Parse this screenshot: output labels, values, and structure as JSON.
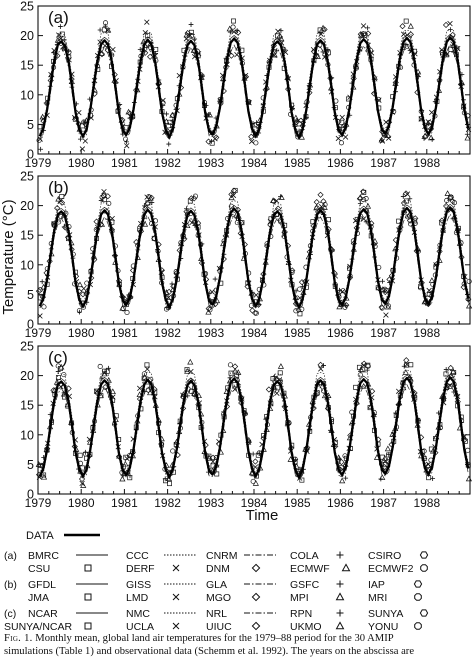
{
  "chart_data": {
    "type": "line",
    "ylabel": "Temperature (°C)",
    "xlabel": "Time",
    "ylim": [
      0,
      25
    ],
    "yticks": [
      0,
      5,
      10,
      15,
      20,
      25
    ],
    "xlim": [
      1979,
      1989
    ],
    "xticks": [
      "1979",
      "1980",
      "1981",
      "1982",
      "1983",
      "1984",
      "1985",
      "1986",
      "1987",
      "1988"
    ],
    "panels": [
      {
        "label": "(a)",
        "data_series": {
          "name": "DATA",
          "x": [
            1979.04,
            1979.12,
            1979.21,
            1979.29,
            1979.37,
            1979.46,
            1979.54,
            1979.62,
            1979.71,
            1979.79,
            1979.87,
            1979.96,
            1980.04,
            1980.12,
            1980.21,
            1980.29,
            1980.37,
            1980.46,
            1980.54,
            1980.62,
            1980.71,
            1980.79,
            1980.87,
            1980.96,
            1981.04,
            1981.12,
            1981.21,
            1981.29,
            1981.37,
            1981.46,
            1981.54,
            1981.62,
            1981.71,
            1981.79,
            1981.87,
            1981.96,
            1982.04,
            1982.12,
            1982.21,
            1982.29,
            1982.37,
            1982.46,
            1982.54,
            1982.62,
            1982.71,
            1982.79,
            1982.87,
            1982.96,
            1983.04,
            1983.12,
            1983.21,
            1983.29,
            1983.37,
            1983.46,
            1983.54,
            1983.62,
            1983.71,
            1983.79,
            1983.87,
            1983.96,
            1984.04,
            1984.12,
            1984.21,
            1984.29,
            1984.37,
            1984.46,
            1984.54,
            1984.62,
            1984.71,
            1984.79,
            1984.87,
            1984.96,
            1985.04,
            1985.12,
            1985.21,
            1985.29,
            1985.37,
            1985.46,
            1985.54,
            1985.62,
            1985.71,
            1985.79,
            1985.87,
            1985.96,
            1986.04,
            1986.12,
            1986.21,
            1986.29,
            1986.37,
            1986.46,
            1986.54,
            1986.62,
            1986.71,
            1986.79,
            1986.87,
            1986.96,
            1987.04,
            1987.12,
            1987.21,
            1987.29,
            1987.37,
            1987.46,
            1987.54,
            1987.62,
            1987.71,
            1987.79,
            1987.87,
            1987.96,
            1988.04,
            1988.12,
            1988.21,
            1988.29,
            1988.37,
            1988.46,
            1988.54,
            1988.62,
            1988.71,
            1988.79,
            1988.87,
            1988.96
          ],
          "y": [
            3.0,
            4.2,
            7.5,
            11.5,
            15.5,
            18.5,
            19.0,
            18.3,
            15.5,
            11.5,
            7.0,
            4.0,
            3.0,
            4.0,
            7.5,
            11.5,
            15.5,
            18.5,
            19.2,
            18.5,
            15.5,
            11.5,
            7.0,
            4.0,
            3.2,
            4.3,
            7.5,
            11.5,
            15.5,
            18.5,
            19.3,
            18.6,
            15.6,
            11.5,
            7.0,
            4.0,
            2.8,
            4.2,
            7.5,
            11.5,
            15.5,
            18.4,
            19.1,
            18.4,
            15.5,
            11.4,
            7.0,
            3.9,
            3.3,
            4.5,
            7.8,
            11.8,
            15.8,
            18.8,
            19.5,
            18.8,
            15.8,
            11.7,
            7.2,
            4.1,
            3.0,
            4.2,
            7.5,
            11.5,
            15.5,
            18.4,
            19.0,
            18.4,
            15.5,
            11.5,
            7.0,
            3.9,
            2.8,
            4.0,
            7.4,
            11.5,
            15.5,
            18.5,
            19.2,
            18.5,
            15.5,
            11.5,
            7.0,
            4.0,
            3.2,
            4.4,
            7.7,
            11.7,
            15.7,
            18.7,
            19.4,
            18.7,
            15.7,
            11.6,
            7.2,
            4.1,
            3.4,
            4.6,
            7.9,
            11.9,
            15.9,
            18.9,
            19.6,
            18.9,
            15.9,
            11.8,
            7.3,
            4.3,
            3.3,
            4.5,
            7.8,
            11.9,
            15.9,
            18.9,
            19.7,
            19.0,
            16.0,
            11.9,
            7.4,
            4.3
          ]
        },
        "models": [
          "BMRC",
          "CCC",
          "CNRM",
          "COLA",
          "CSIRO",
          "CSU",
          "DERF",
          "DNM",
          "ECMWF",
          "ECMWF2"
        ]
      },
      {
        "label": "(b)",
        "data_series": {
          "name": "DATA",
          "x": [
            1979.04,
            1979.12,
            1979.21,
            1979.29,
            1979.37,
            1979.46,
            1979.54,
            1979.62,
            1979.71,
            1979.79,
            1979.87,
            1979.96,
            1980.04,
            1980.12,
            1980.21,
            1980.29,
            1980.37,
            1980.46,
            1980.54,
            1980.62,
            1980.71,
            1980.79,
            1980.87,
            1980.96,
            1981.04,
            1981.12,
            1981.21,
            1981.29,
            1981.37,
            1981.46,
            1981.54,
            1981.62,
            1981.71,
            1981.79,
            1981.87,
            1981.96,
            1982.04,
            1982.12,
            1982.21,
            1982.29,
            1982.37,
            1982.46,
            1982.54,
            1982.62,
            1982.71,
            1982.79,
            1982.87,
            1982.96,
            1983.04,
            1983.12,
            1983.21,
            1983.29,
            1983.37,
            1983.46,
            1983.54,
            1983.62,
            1983.71,
            1983.79,
            1983.87,
            1983.96,
            1984.04,
            1984.12,
            1984.21,
            1984.29,
            1984.37,
            1984.46,
            1984.54,
            1984.62,
            1984.71,
            1984.79,
            1984.87,
            1984.96,
            1985.04,
            1985.12,
            1985.21,
            1985.29,
            1985.37,
            1985.46,
            1985.54,
            1985.62,
            1985.71,
            1985.79,
            1985.87,
            1985.96,
            1986.04,
            1986.12,
            1986.21,
            1986.29,
            1986.37,
            1986.46,
            1986.54,
            1986.62,
            1986.71,
            1986.79,
            1986.87,
            1986.96,
            1987.04,
            1987.12,
            1987.21,
            1987.29,
            1987.37,
            1987.46,
            1987.54,
            1987.62,
            1987.71,
            1987.79,
            1987.87,
            1987.96,
            1988.04,
            1988.12,
            1988.21,
            1988.29,
            1988.37,
            1988.46,
            1988.54,
            1988.62,
            1988.71,
            1988.79,
            1988.87,
            1988.96
          ],
          "y": [
            3.0,
            4.2,
            7.5,
            11.5,
            15.5,
            18.5,
            19.0,
            18.3,
            15.5,
            11.5,
            7.0,
            4.0,
            3.0,
            4.0,
            7.5,
            11.5,
            15.5,
            18.5,
            19.2,
            18.5,
            15.5,
            11.5,
            7.0,
            4.0,
            3.2,
            4.3,
            7.5,
            11.5,
            15.5,
            18.5,
            19.3,
            18.6,
            15.6,
            11.5,
            7.0,
            4.0,
            2.8,
            4.2,
            7.5,
            11.5,
            15.5,
            18.4,
            19.1,
            18.4,
            15.5,
            11.4,
            7.0,
            3.9,
            3.3,
            4.5,
            7.8,
            11.8,
            15.8,
            18.8,
            19.5,
            18.8,
            15.8,
            11.7,
            7.2,
            4.1,
            3.0,
            4.2,
            7.5,
            11.5,
            15.5,
            18.4,
            19.0,
            18.4,
            15.5,
            11.5,
            7.0,
            3.9,
            2.8,
            4.0,
            7.4,
            11.5,
            15.5,
            18.5,
            19.2,
            18.5,
            15.5,
            11.5,
            7.0,
            4.0,
            3.2,
            4.4,
            7.7,
            11.7,
            15.7,
            18.7,
            19.4,
            18.7,
            15.7,
            11.6,
            7.2,
            4.1,
            3.4,
            4.6,
            7.9,
            11.9,
            15.9,
            18.9,
            19.6,
            18.9,
            15.9,
            11.8,
            7.3,
            4.3,
            3.3,
            4.5,
            7.8,
            11.9,
            15.9,
            18.9,
            19.7,
            19.0,
            16.0,
            11.9,
            7.4,
            4.3
          ]
        },
        "models": [
          "GFDL",
          "GISS",
          "GLA",
          "GSFC",
          "IAP",
          "JMA",
          "LMD",
          "MGO",
          "MPI",
          "MRI"
        ]
      },
      {
        "label": "(c)",
        "data_series": {
          "name": "DATA",
          "x": [
            1979.04,
            1979.12,
            1979.21,
            1979.29,
            1979.37,
            1979.46,
            1979.54,
            1979.62,
            1979.71,
            1979.79,
            1979.87,
            1979.96,
            1980.04,
            1980.12,
            1980.21,
            1980.29,
            1980.37,
            1980.46,
            1980.54,
            1980.62,
            1980.71,
            1980.79,
            1980.87,
            1980.96,
            1981.04,
            1981.12,
            1981.21,
            1981.29,
            1981.37,
            1981.46,
            1981.54,
            1981.62,
            1981.71,
            1981.79,
            1981.87,
            1981.96,
            1982.04,
            1982.12,
            1982.21,
            1982.29,
            1982.37,
            1982.46,
            1982.54,
            1982.62,
            1982.71,
            1982.79,
            1982.87,
            1982.96,
            1983.04,
            1983.12,
            1983.21,
            1983.29,
            1983.37,
            1983.46,
            1983.54,
            1983.62,
            1983.71,
            1983.79,
            1983.87,
            1983.96,
            1984.04,
            1984.12,
            1984.21,
            1984.29,
            1984.37,
            1984.46,
            1984.54,
            1984.62,
            1984.71,
            1984.79,
            1984.87,
            1984.96,
            1985.04,
            1985.12,
            1985.21,
            1985.29,
            1985.37,
            1985.46,
            1985.54,
            1985.62,
            1985.71,
            1985.79,
            1985.87,
            1985.96,
            1986.04,
            1986.12,
            1986.21,
            1986.29,
            1986.37,
            1986.46,
            1986.54,
            1986.62,
            1986.71,
            1986.79,
            1986.87,
            1986.96,
            1987.04,
            1987.12,
            1987.21,
            1987.29,
            1987.37,
            1987.46,
            1987.54,
            1987.62,
            1987.71,
            1987.79,
            1987.87,
            1987.96,
            1988.04,
            1988.12,
            1988.21,
            1988.29,
            1988.37,
            1988.46,
            1988.54,
            1988.62,
            1988.71,
            1988.79,
            1988.87,
            1988.96
          ],
          "y": [
            3.0,
            4.2,
            7.5,
            11.5,
            15.5,
            18.5,
            19.0,
            18.3,
            15.5,
            11.5,
            7.0,
            4.0,
            3.0,
            4.0,
            7.5,
            11.5,
            15.5,
            18.5,
            19.2,
            18.5,
            15.5,
            11.5,
            7.0,
            4.0,
            3.2,
            4.3,
            7.5,
            11.5,
            15.5,
            18.5,
            19.3,
            18.6,
            15.6,
            11.5,
            7.0,
            4.0,
            2.8,
            4.2,
            7.5,
            11.5,
            15.5,
            18.4,
            19.1,
            18.4,
            15.5,
            11.4,
            7.0,
            3.9,
            3.3,
            4.5,
            7.8,
            11.8,
            15.8,
            18.8,
            19.5,
            18.8,
            15.8,
            11.7,
            7.2,
            4.1,
            3.0,
            4.2,
            7.5,
            11.5,
            15.5,
            18.4,
            19.0,
            18.4,
            15.5,
            11.5,
            7.0,
            3.9,
            2.8,
            4.0,
            7.4,
            11.5,
            15.5,
            18.5,
            19.2,
            18.5,
            15.5,
            11.5,
            7.0,
            4.0,
            3.2,
            4.4,
            7.7,
            11.7,
            15.7,
            18.7,
            19.4,
            18.7,
            15.7,
            11.6,
            7.2,
            4.1,
            3.4,
            4.6,
            7.9,
            11.9,
            15.9,
            18.9,
            19.6,
            18.9,
            15.9,
            11.8,
            7.3,
            4.3,
            3.3,
            4.5,
            7.8,
            11.9,
            15.9,
            18.9,
            19.7,
            19.0,
            16.0,
            11.9,
            7.4,
            4.3
          ]
        },
        "models": [
          "NCAR",
          "NMC",
          "NRL",
          "RPN",
          "SUNYA",
          "SUNYA/NCAR",
          "UCLA",
          "UIUC",
          "UKMO",
          "YONU"
        ]
      }
    ]
  },
  "legend": {
    "data_label": "DATA",
    "rows": [
      {
        "group": "(a)",
        "items": [
          {
            "name": "BMRC",
            "style": "solid"
          },
          {
            "name": "CCC",
            "style": "dotted"
          },
          {
            "name": "CNRM",
            "style": "dashdot"
          },
          {
            "name": "COLA",
            "style": "plus"
          },
          {
            "name": "CSIRO",
            "style": "hexagon"
          }
        ]
      },
      {
        "group": "",
        "items": [
          {
            "name": "CSU",
            "style": "square"
          },
          {
            "name": "DERF",
            "style": "cross"
          },
          {
            "name": "DNM",
            "style": "diamond"
          },
          {
            "name": "ECMWF",
            "style": "triangle"
          },
          {
            "name": "ECMWF2",
            "style": "octagon"
          }
        ]
      },
      {
        "group": "(b)",
        "items": [
          {
            "name": "GFDL",
            "style": "solid"
          },
          {
            "name": "GISS",
            "style": "dotted"
          },
          {
            "name": "GLA",
            "style": "dashdot"
          },
          {
            "name": "GSFC",
            "style": "plus"
          },
          {
            "name": "IAP",
            "style": "hexagon"
          }
        ]
      },
      {
        "group": "",
        "items": [
          {
            "name": "JMA",
            "style": "square"
          },
          {
            "name": "LMD",
            "style": "cross"
          },
          {
            "name": "MGO",
            "style": "diamond"
          },
          {
            "name": "MPI",
            "style": "triangle"
          },
          {
            "name": "MRI",
            "style": "octagon"
          }
        ]
      },
      {
        "group": "(c)",
        "items": [
          {
            "name": "NCAR",
            "style": "solid"
          },
          {
            "name": "NMC",
            "style": "dotted"
          },
          {
            "name": "NRL",
            "style": "dashdot"
          },
          {
            "name": "RPN",
            "style": "plus"
          },
          {
            "name": "SUNYA",
            "style": "hexagon"
          }
        ]
      },
      {
        "group": "",
        "items": [
          {
            "name": "SUNYA/NCAR",
            "style": "square"
          },
          {
            "name": "UCLA",
            "style": "cross"
          },
          {
            "name": "UIUC",
            "style": "diamond"
          },
          {
            "name": "UKMO",
            "style": "triangle"
          },
          {
            "name": "YONU",
            "style": "octagon"
          }
        ]
      }
    ]
  },
  "caption": {
    "lead": "Fig. 1.",
    "line1": "Monthly mean, global land air temperatures for the 1979–88 period for the 30 AMIP",
    "line2": "simulations (Table 1) and observational data (Schemm et al. 1992). The years on the abscissa are"
  }
}
